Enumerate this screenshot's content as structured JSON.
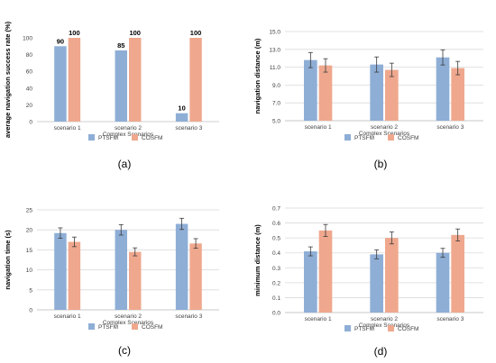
{
  "colors": {
    "ptsfm": "#8eaed6",
    "cosfm": "#efa88e",
    "grid": "#d9d9d9",
    "axis_text": "#404040",
    "error": "#3a3a3a"
  },
  "chart_data": [
    {
      "id": "a",
      "type": "bar",
      "panel_label": "(a)",
      "xlabel": "Complex Scenarios",
      "ylabel": "average navigation success rate (%)",
      "categories": [
        "scenario 1",
        "scenario 2",
        "scenario 3"
      ],
      "ylim": [
        0,
        100
      ],
      "yticks": [
        "0",
        "20",
        "40",
        "60",
        "80",
        "100"
      ],
      "grid": false,
      "legend": "bottom",
      "series": [
        {
          "name": "PTSFM",
          "values": [
            90,
            85,
            10
          ],
          "labels": [
            "90",
            "85",
            "10"
          ]
        },
        {
          "name": "COSFM",
          "values": [
            100,
            100,
            100
          ],
          "labels": [
            "100",
            "100",
            "100"
          ]
        }
      ]
    },
    {
      "id": "b",
      "type": "bar",
      "panel_label": "(b)",
      "xlabel": "Complex Scenarios",
      "ylabel": "navigation distance (m)",
      "categories": [
        "scenario 1",
        "scenario 2",
        "scenario 3"
      ],
      "ylim": [
        5.0,
        15.0
      ],
      "yticks": [
        "5.0",
        "7.0",
        "9.0",
        "11.0",
        "13.0",
        "15.0"
      ],
      "grid": true,
      "legend": "bottom",
      "series": [
        {
          "name": "PTSFM",
          "values": [
            11.8,
            11.3,
            12.1
          ],
          "errors": [
            0.85,
            0.85,
            0.85
          ]
        },
        {
          "name": "COSFM",
          "values": [
            11.2,
            10.7,
            10.9
          ],
          "errors": [
            0.75,
            0.75,
            0.75
          ]
        }
      ]
    },
    {
      "id": "c",
      "type": "bar",
      "panel_label": "(c)",
      "xlabel": "Complex Scenarios",
      "ylabel": "navigation time (s)",
      "categories": [
        "scenario 1",
        "scenario 2",
        "scenario 3"
      ],
      "ylim": [
        0,
        25
      ],
      "yticks": [
        "0",
        "5",
        "10",
        "15",
        "20",
        "25"
      ],
      "grid": true,
      "legend": "bottom",
      "series": [
        {
          "name": "PTSFM",
          "values": [
            19.2,
            20.0,
            21.5
          ],
          "errors": [
            1.3,
            1.3,
            1.4
          ]
        },
        {
          "name": "COSFM",
          "values": [
            17.0,
            14.5,
            16.6
          ],
          "errors": [
            1.2,
            1.0,
            1.2
          ]
        }
      ]
    },
    {
      "id": "d",
      "type": "bar",
      "panel_label": "(d)",
      "xlabel": "Complex Scenarios",
      "ylabel": "minimum distance (m)",
      "categories": [
        "scenario 1",
        "scenario 2",
        "scenario 3"
      ],
      "ylim": [
        0,
        0.7
      ],
      "yticks": [
        "0.0",
        "0.1",
        "0.2",
        "0.3",
        "0.4",
        "0.5",
        "0.6",
        "0.7"
      ],
      "grid": true,
      "legend": "bottom",
      "series": [
        {
          "name": "PTSFM",
          "values": [
            0.41,
            0.39,
            0.4
          ],
          "errors": [
            0.03,
            0.03,
            0.03
          ]
        },
        {
          "name": "COSFM",
          "values": [
            0.55,
            0.5,
            0.52
          ],
          "errors": [
            0.04,
            0.04,
            0.04
          ]
        }
      ]
    }
  ]
}
